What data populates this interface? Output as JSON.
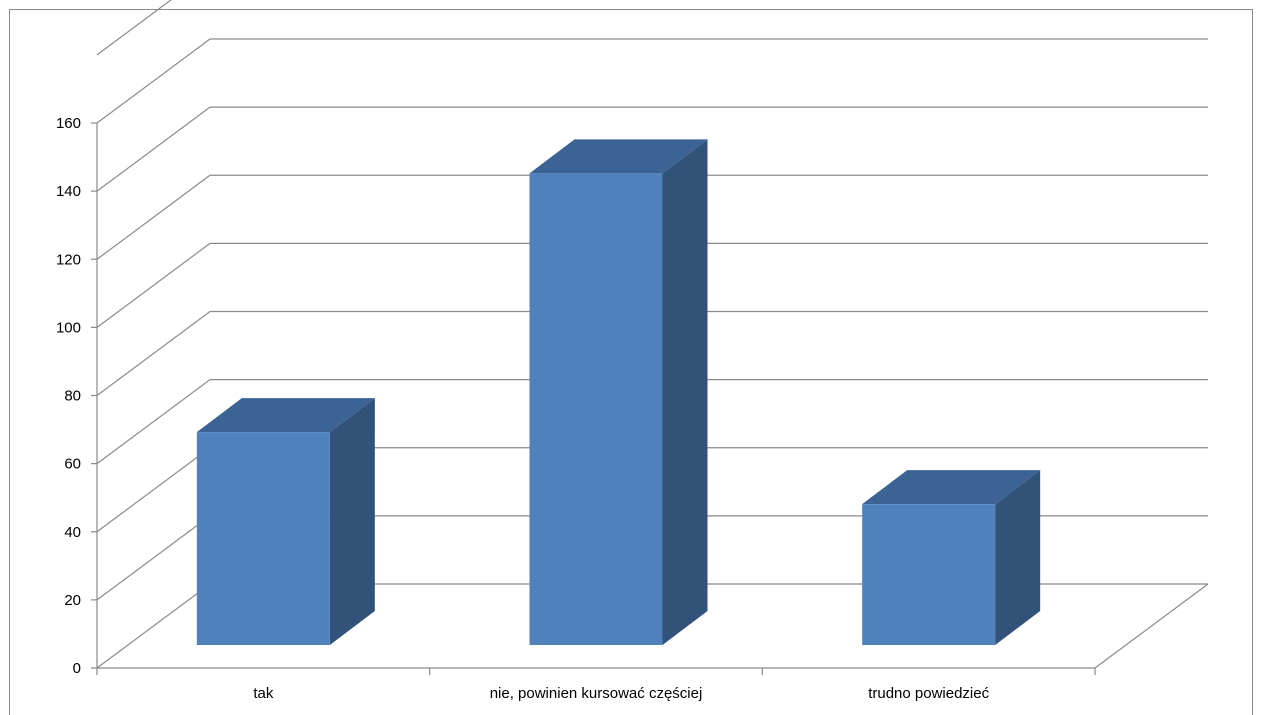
{
  "chart_data": {
    "type": "bar",
    "style": "3d-column",
    "categories": [
      "tak",
      "nie, powinien kursować częściej",
      "trudno powiedzieć"
    ],
    "values": [
      65,
      144,
      43
    ],
    "ylim": [
      0,
      160
    ],
    "yticks": [
      0,
      20,
      40,
      60,
      80,
      100,
      120,
      140,
      160
    ],
    "grid": true,
    "legend": "none",
    "colors": {
      "front": "#4f81bd",
      "top": "#3b6393",
      "side": "#32527a",
      "grid": "#8a8a8a"
    }
  }
}
